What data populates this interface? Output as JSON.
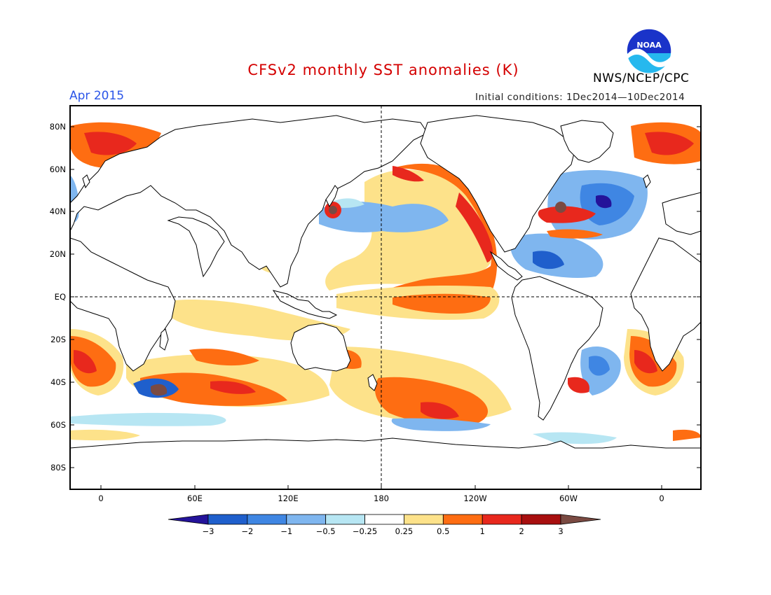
{
  "header": {
    "title": "CFSv2 monthly SST anomalies (K)",
    "month": "Apr 2015",
    "initial_conditions": "Initial conditions: 1Dec2014—10Dec2014",
    "agency": "NWS/NCEP/CPC",
    "logo_text": "NOAA"
  },
  "map": {
    "lat_ticks": [
      "80N",
      "60N",
      "40N",
      "20N",
      "EQ",
      "20S",
      "40S",
      "60S",
      "80S"
    ],
    "lon_ticks": [
      "0",
      "60E",
      "120E",
      "180",
      "120W",
      "60W",
      "0"
    ]
  },
  "colorbar": {
    "labels": [
      "−3",
      "−2",
      "−1",
      "−0.5",
      "−0.25",
      "0.25",
      "0.5",
      "1",
      "2",
      "3"
    ],
    "colors": [
      "#24139a",
      "#1f5fcc",
      "#3f86e3",
      "#7fb6ef",
      "#b7e6f3",
      "#ffffff",
      "#fde28a",
      "#fe6d12",
      "#e8281d",
      "#a80f0f",
      "#7a4a42"
    ]
  }
}
